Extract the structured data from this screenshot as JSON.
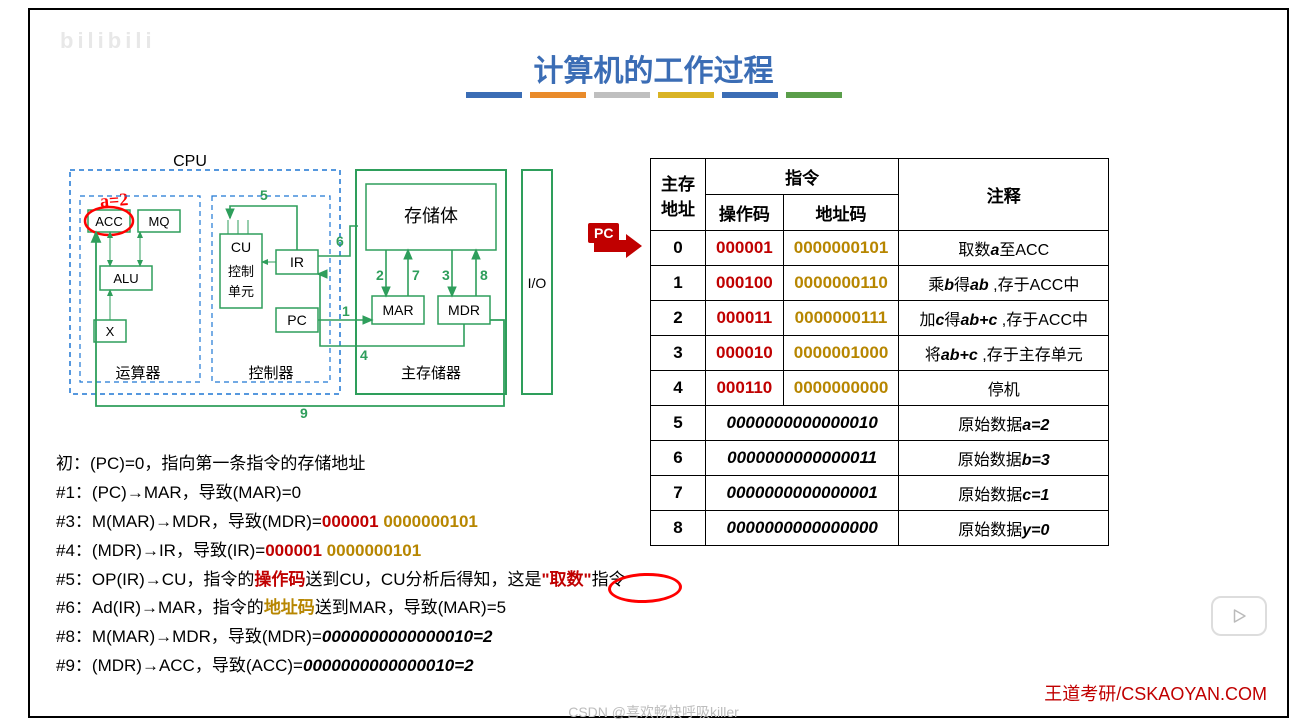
{
  "title": "计算机的工作过程",
  "watermark_tl": "bilibili",
  "bar_colors": [
    "#3b6db5",
    "#e98b2a",
    "#bfbfbf",
    "#d9b324",
    "#3b6db5",
    "#5a9e4a"
  ],
  "diagram": {
    "cpu_label": "CPU",
    "acc": "ACC",
    "mq": "MQ",
    "alu": "ALU",
    "x": "X",
    "alu_box_label": "运算器",
    "cu": "CU",
    "cu_sub": "控制\n单元",
    "ir": "IR",
    "pc": "PC",
    "cu_box_label": "控制器",
    "storage_body": "存储体",
    "mar": "MAR",
    "mdr": "MDR",
    "mem_box_label": "主存储器",
    "io": "I/O",
    "step_labels": {
      "1": "1",
      "2": "2",
      "3": "3",
      "4": "4",
      "5": "5",
      "6": "6",
      "7": "7",
      "8": "8",
      "9": "9"
    },
    "box_stroke": "#2e9e5b",
    "dash_stroke": "#1f77d4",
    "arrow_color": "#2e9e5b",
    "a_eq_2": "a=2"
  },
  "pc_badge": "PC",
  "table": {
    "headers": {
      "addr": "主存\n地址",
      "instr": "指令",
      "op": "操作码",
      "ac": "地址码",
      "comment": "注释"
    },
    "rows": [
      {
        "addr": "0",
        "op": "000001",
        "ac": "0000000101",
        "comment_parts": [
          "取数",
          "a",
          "至ACC"
        ],
        "kind": "instr"
      },
      {
        "addr": "1",
        "op": "000100",
        "ac": "0000000110",
        "comment_parts": [
          "乘",
          "b",
          "得",
          "ab",
          " ,存于ACC中"
        ],
        "kind": "instr"
      },
      {
        "addr": "2",
        "op": "000011",
        "ac": "0000000111",
        "comment_parts": [
          "加",
          "c",
          "得",
          "ab+c",
          " ,存于ACC中"
        ],
        "kind": "instr"
      },
      {
        "addr": "3",
        "op": "000010",
        "ac": "0000001000",
        "comment_parts": [
          "将",
          "ab+c",
          " ,存于主存单元"
        ],
        "kind": "instr"
      },
      {
        "addr": "4",
        "op": "000110",
        "ac": "0000000000",
        "comment_parts": [
          "停机"
        ],
        "kind": "instr"
      },
      {
        "addr": "5",
        "data": "0000000000000010",
        "comment_parts": [
          "原始数据",
          "a=2"
        ],
        "kind": "data"
      },
      {
        "addr": "6",
        "data": "0000000000000011",
        "comment_parts": [
          "原始数据",
          "b=3"
        ],
        "kind": "data"
      },
      {
        "addr": "7",
        "data": "0000000000000001",
        "comment_parts": [
          "原始数据",
          "c=1"
        ],
        "kind": "data"
      },
      {
        "addr": "8",
        "data": "0000000000000000",
        "comment_parts": [
          "原始数据",
          "y=0"
        ],
        "kind": "data"
      }
    ]
  },
  "steps": {
    "lines": [
      {
        "t": [
          [
            "",
            "初：(PC)=0，指向第一条指令的存储地址"
          ]
        ]
      },
      {
        "t": [
          [
            "",
            "#1：(PC)→MAR，导致(MAR)=0"
          ]
        ]
      },
      {
        "t": [
          [
            "",
            "#3：M(MAR)→MDR，导致(MDR)="
          ],
          [
            "red",
            "000001 "
          ],
          [
            "gold",
            "0000000101"
          ]
        ]
      },
      {
        "t": [
          [
            "",
            "#4：(MDR)→IR，导致(IR)="
          ],
          [
            "red",
            "000001 "
          ],
          [
            "gold",
            "0000000101"
          ]
        ]
      },
      {
        "t": [
          [
            "",
            "#5：OP(IR)→CU，指令的"
          ],
          [
            "red",
            "操作码"
          ],
          [
            "",
            "送到CU，CU分析后得知，这是"
          ],
          [
            "red",
            "\"取数\""
          ],
          [
            "",
            "指令"
          ]
        ]
      },
      {
        "t": [
          [
            "",
            "#6：Ad(IR)→MAR，指令的"
          ],
          [
            "gold",
            "地址码"
          ],
          [
            "",
            "送到MAR，导致(MAR)=5"
          ]
        ]
      },
      {
        "t": [
          [
            "",
            "#8：M(MAR)→MDR，导致(MDR)="
          ],
          [
            "it",
            "0000000000000010=2"
          ]
        ]
      },
      {
        "t": [
          [
            "",
            "#9：(MDR)→ACC，导致(ACC)="
          ],
          [
            "it",
            "0000000000000010=2"
          ]
        ]
      }
    ]
  },
  "circle_word": "取数",
  "footer_right": "王道考研/CSKAOYAN.COM",
  "footer_center": "CSDN @喜欢畅快呼吸killer"
}
